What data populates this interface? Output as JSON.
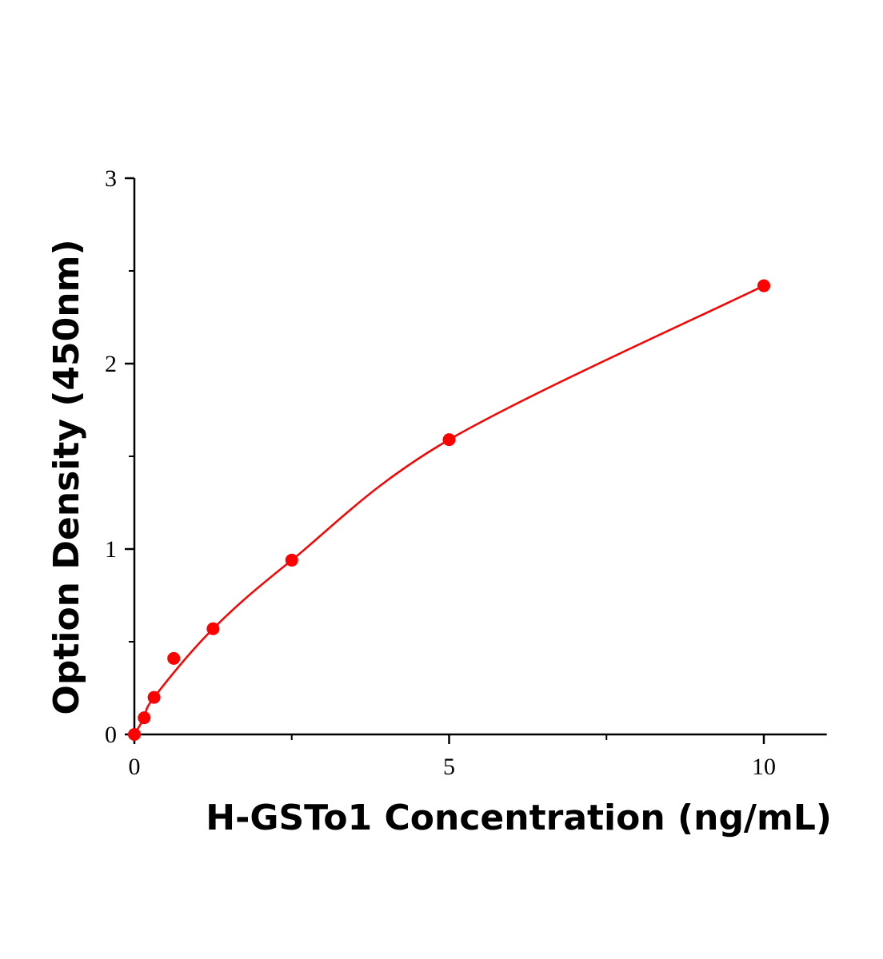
{
  "chart_data": {
    "type": "scatter",
    "title": "",
    "xlabel": "H-GSTo1 Concentration (ng/mL)",
    "ylabel": "Option Density (450nm)",
    "xlim": [
      0,
      11
    ],
    "ylim": [
      0,
      3
    ],
    "x_ticks": [
      "0",
      "5",
      "10"
    ],
    "y_ticks": [
      "0",
      "1",
      "2",
      "3"
    ],
    "grid": false,
    "series": [
      {
        "x": [
          0,
          0.156,
          0.3125,
          0.625,
          1.25,
          2.5,
          5,
          10
        ],
        "y": [
          0,
          0.09,
          0.2,
          0.41,
          0.57,
          0.94,
          1.59,
          2.42
        ],
        "color": "#ff0000",
        "fit_curve": true
      }
    ]
  }
}
